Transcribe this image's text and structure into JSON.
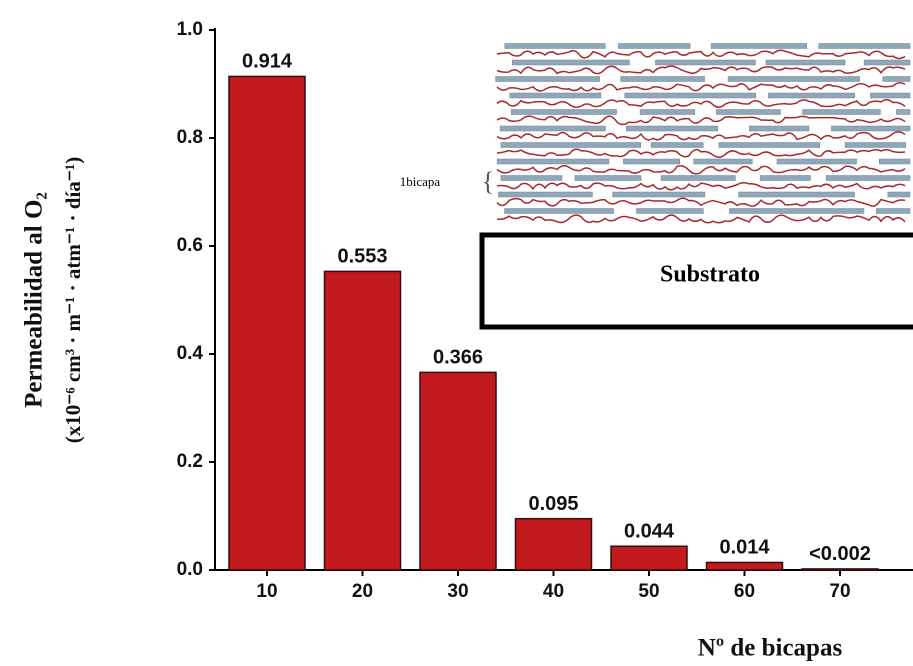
{
  "chart_data": {
    "type": "bar",
    "x_label": "Nº de bicapas",
    "y_label": "Permeabilidad al O₂",
    "y_label_units": "(x10⁻⁶ cm³ · m⁻¹ · atm⁻¹ · día⁻¹)",
    "categories": [
      "10",
      "20",
      "30",
      "40",
      "50",
      "60",
      "70"
    ],
    "values": [
      0.914,
      0.553,
      0.366,
      0.095,
      0.044,
      0.014,
      0.002
    ],
    "value_labels": [
      "0.914",
      "0.553",
      "0.366",
      "0.095",
      "0.044",
      "0.014",
      "<0.002"
    ],
    "color": "#c31a1f",
    "ylim": [
      0,
      1.0
    ],
    "yticks": [
      {
        "value": 0,
        "label": "0.0"
      },
      0.2,
      0.4,
      0.6,
      0.8,
      {
        "value": 1.0,
        "label": "1.0"
      }
    ],
    "grid": false,
    "inset": {
      "layer_label": "1bicapa",
      "substrate_label": "Substrato"
    }
  }
}
